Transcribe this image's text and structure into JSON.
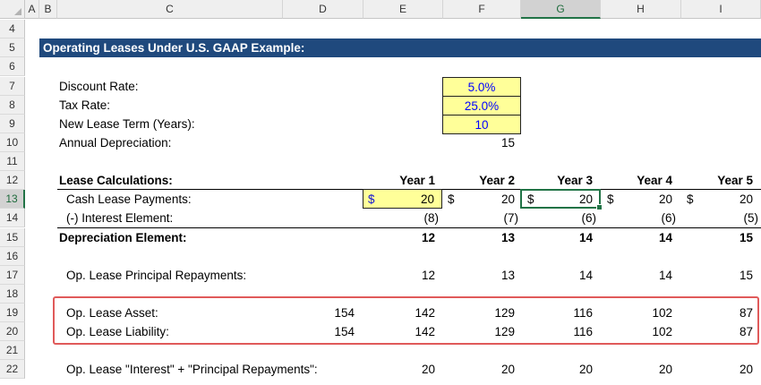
{
  "columns": [
    "A",
    "B",
    "C",
    "D",
    "E",
    "F",
    "G",
    "H",
    "I"
  ],
  "rows": [
    "4",
    "5",
    "6",
    "7",
    "8",
    "9",
    "10",
    "11",
    "12",
    "13",
    "14",
    "15",
    "16",
    "17",
    "18",
    "19",
    "20",
    "21",
    "22"
  ],
  "title": "Operating Leases Under U.S. GAAP Example:",
  "inputs": [
    {
      "label": "Discount Rate:",
      "value": "5.0%"
    },
    {
      "label": "Tax Rate:",
      "value": "25.0%"
    },
    {
      "label": "New Lease Term (Years):",
      "value": "10"
    }
  ],
  "annual_depreciation": {
    "label": "Annual Depreciation:",
    "value": "15"
  },
  "calc_header": "Lease Calculations:",
  "years": [
    "Year 1",
    "Year 2",
    "Year 3",
    "Year 4",
    "Year 5"
  ],
  "cash_payments": {
    "label": "Cash Lease Payments:",
    "currency": "$",
    "values": [
      "20",
      "20",
      "20",
      "20",
      "20"
    ]
  },
  "interest": {
    "label": "(-) Interest Element:",
    "values": [
      "(8)",
      "(7)",
      "(6)",
      "(6)",
      "(5)"
    ]
  },
  "depreciation": {
    "label": "Depreciation Element:",
    "values": [
      "12",
      "13",
      "14",
      "14",
      "15"
    ]
  },
  "principal": {
    "label": "Op. Lease Principal Repayments:",
    "values": [
      "12",
      "13",
      "14",
      "14",
      "15"
    ]
  },
  "asset": {
    "label": "Op. Lease Asset:",
    "initial": "154",
    "values": [
      "142",
      "129",
      "116",
      "102",
      "87"
    ]
  },
  "liability": {
    "label": "Op. Lease Liability:",
    "initial": "154",
    "values": [
      "142",
      "129",
      "116",
      "102",
      "87"
    ]
  },
  "interest_principal": {
    "label": "Op. Lease \"Interest\" + \"Principal Repayments\":",
    "values": [
      "20",
      "20",
      "20",
      "20",
      "20"
    ]
  },
  "colors": {
    "title_bg": "#1f497d",
    "input_bg": "#ffff99",
    "input_text": "#0000ff",
    "highlight_box": "#e05a5a",
    "excel_green": "#217346"
  }
}
